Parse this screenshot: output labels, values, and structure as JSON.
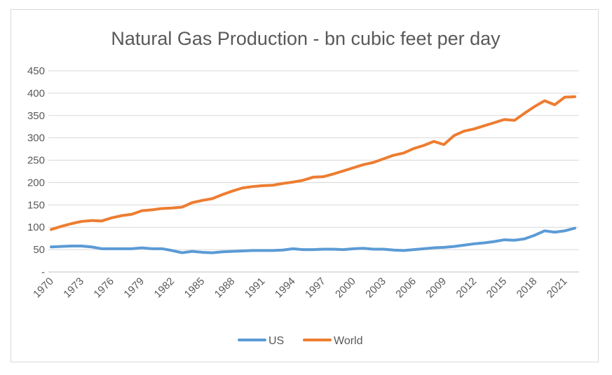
{
  "chart_data": {
    "type": "line",
    "title": "Natural Gas Production - bn cubic feet per day",
    "xlabel": "",
    "ylabel": "",
    "ylim": [
      0,
      450
    ],
    "y_ticks": [
      {
        "value": 0,
        "label": "-"
      },
      {
        "value": 50,
        "label": "50"
      },
      {
        "value": 100,
        "label": "100"
      },
      {
        "value": 150,
        "label": "150"
      },
      {
        "value": 200,
        "label": "200"
      },
      {
        "value": 250,
        "label": "250"
      },
      {
        "value": 300,
        "label": "300"
      },
      {
        "value": 350,
        "label": "350"
      },
      {
        "value": 400,
        "label": "400"
      },
      {
        "value": 450,
        "label": "450"
      }
    ],
    "grid": true,
    "legend": "bottom",
    "x": [
      1970,
      1971,
      1972,
      1973,
      1974,
      1975,
      1976,
      1977,
      1978,
      1979,
      1980,
      1981,
      1982,
      1983,
      1984,
      1985,
      1986,
      1987,
      1988,
      1989,
      1990,
      1991,
      1992,
      1993,
      1994,
      1995,
      1996,
      1997,
      1998,
      1999,
      2000,
      2001,
      2002,
      2003,
      2004,
      2005,
      2006,
      2007,
      2008,
      2009,
      2010,
      2011,
      2012,
      2013,
      2014,
      2015,
      2016,
      2017,
      2018,
      2019,
      2020,
      2021,
      2022
    ],
    "x_tick_labels": [
      "1970",
      "1973",
      "1976",
      "1979",
      "1982",
      "1985",
      "1988",
      "1991",
      "1994",
      "1997",
      "2000",
      "2003",
      "2006",
      "2009",
      "2012",
      "2015",
      "2018",
      "2021"
    ],
    "series": [
      {
        "name": "US",
        "color": "#5b9bd5",
        "values": [
          56,
          57,
          58,
          58,
          56,
          52,
          52,
          52,
          52,
          54,
          52,
          52,
          48,
          43,
          46,
          44,
          43,
          45,
          46,
          47,
          48,
          48,
          48,
          49,
          52,
          50,
          50,
          51,
          51,
          50,
          52,
          53,
          51,
          51,
          49,
          48,
          50,
          52,
          54,
          55,
          57,
          60,
          63,
          65,
          68,
          72,
          71,
          74,
          82,
          92,
          89,
          92,
          98
        ]
      },
      {
        "name": "World",
        "color": "#ed7d31",
        "values": [
          95,
          102,
          108,
          113,
          115,
          114,
          121,
          126,
          129,
          137,
          139,
          142,
          143,
          145,
          155,
          160,
          164,
          173,
          181,
          188,
          191,
          193,
          194,
          198,
          201,
          205,
          212,
          213,
          219,
          226,
          233,
          240,
          245,
          253,
          261,
          266,
          276,
          283,
          292,
          285,
          305,
          315,
          320,
          327,
          334,
          341,
          339,
          355,
          370,
          383,
          374,
          391,
          392
        ]
      }
    ]
  }
}
